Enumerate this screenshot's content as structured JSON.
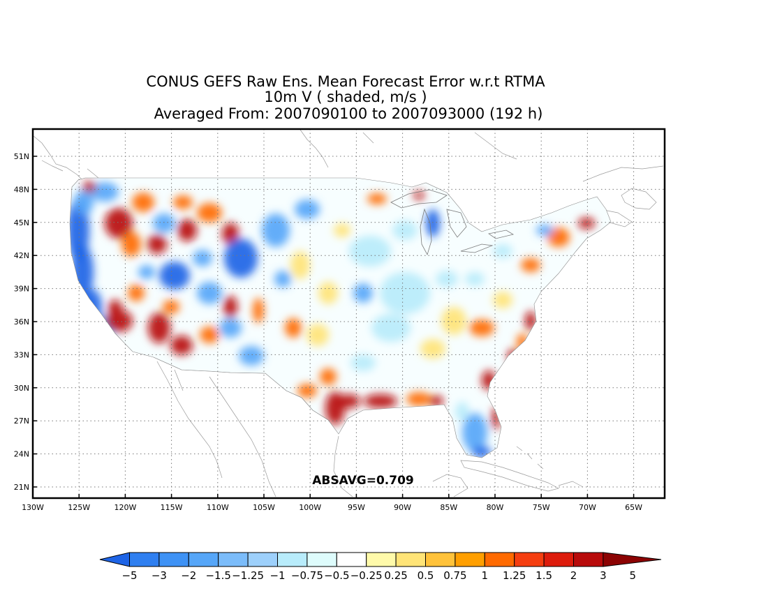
{
  "title": {
    "line1": "CONUS GEFS Raw Ens. Mean Forecast Error w.r.t RTMA",
    "line2": "10m V ( shaded, m/s )",
    "line3": "Averaged From: 2007090100 to 2007093000 (192 h)"
  },
  "stat_label": "ABSAVG=0.709",
  "axes": {
    "lon_ticks": [
      "130W",
      "125W",
      "120W",
      "115W",
      "110W",
      "105W",
      "100W",
      "95W",
      "90W",
      "85W",
      "80W",
      "75W",
      "70W",
      "65W"
    ],
    "lat_ticks": [
      "51N",
      "48N",
      "45N",
      "42N",
      "39N",
      "36N",
      "33N",
      "30N",
      "27N",
      "24N",
      "21N"
    ]
  },
  "colorbar": {
    "colors": [
      "#1e64e6",
      "#2f7ff0",
      "#3e92f5",
      "#56a6f8",
      "#7bbcfa",
      "#9dd0fb",
      "#b8ecfb",
      "#defcfc",
      "#ffffff",
      "#fffaaa",
      "#ffe477",
      "#ffc23a",
      "#ff9f00",
      "#ff6a00",
      "#f53e10",
      "#dd1c0c",
      "#b80b0b",
      "#8c0303"
    ],
    "labels": [
      "−5",
      "−3",
      "−2",
      "−1.5",
      "−1.25",
      "−1",
      "−0.75",
      "−0.5",
      "−0.25",
      "0.25",
      "0.5",
      "0.75",
      "1",
      "1.25",
      "1.5",
      "2",
      "3",
      "5"
    ]
  },
  "field_colors": {
    "strong_neg": "#1e64e6",
    "neg": "#56a6f8",
    "weak_neg": "#b8ecfb",
    "weak_pos": "#ffe477",
    "pos": "#ff6a00",
    "strong_pos": "#b80b0b"
  }
}
